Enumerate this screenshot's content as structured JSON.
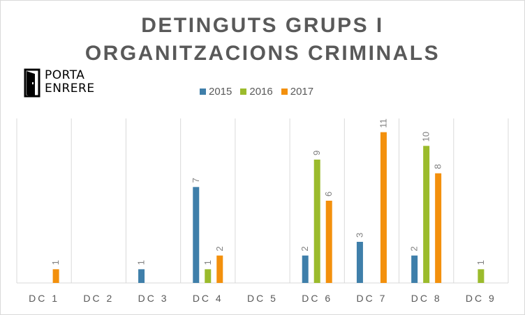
{
  "chart_data": {
    "type": "bar",
    "title_lines": [
      "DETINGUTS GRUPS I",
      "ORGANITZACIONS CRIMINALS"
    ],
    "categories": [
      "DC 1",
      "DC 2",
      "DC 3",
      "DC 4",
      "DC 5",
      "DC 6",
      "DC 7",
      "DC 8",
      "DC 9"
    ],
    "series": [
      {
        "name": "2015",
        "color": "#3f7faa",
        "values": [
          null,
          null,
          1,
          7,
          null,
          2,
          3,
          2,
          null
        ]
      },
      {
        "name": "2016",
        "color": "#9bbb2c",
        "values": [
          null,
          null,
          null,
          1,
          null,
          9,
          null,
          10,
          1
        ]
      },
      {
        "name": "2017",
        "color": "#f3900c",
        "values": [
          1,
          null,
          null,
          2,
          null,
          6,
          11,
          8,
          null
        ]
      }
    ],
    "ylim": [
      0,
      12
    ],
    "grid": "vertical category separators",
    "legend_position": "top-center",
    "data_labels": "rotated, above bars"
  },
  "logo": {
    "line1": "PORTA",
    "line2": "ENRERE"
  }
}
